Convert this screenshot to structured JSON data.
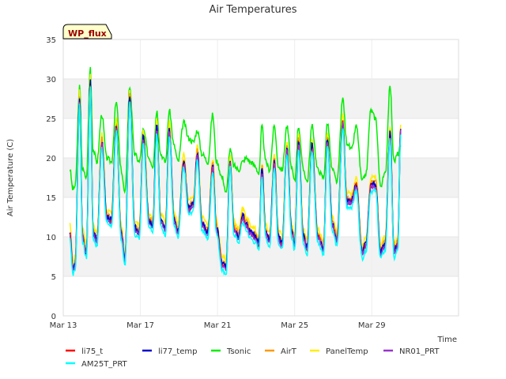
{
  "chart_data": {
    "type": "line",
    "title": "Air Temperatures",
    "xlabel": "Time",
    "ylabel": "Air Temperature (C)",
    "badge": "WP_flux",
    "xlim": [
      0,
      20.5
    ],
    "ylim": [
      0,
      35
    ],
    "x_ticks": [
      {
        "x": 0,
        "label": "Mar 13"
      },
      {
        "x": 4,
        "label": "Mar 17"
      },
      {
        "x": 8,
        "label": "Mar 21"
      },
      {
        "x": 12,
        "label": "Mar 25"
      },
      {
        "x": 16,
        "label": "Mar 29"
      }
    ],
    "y_ticks": [
      0,
      5,
      10,
      15,
      20,
      25,
      30,
      35
    ],
    "shaded_bands": [
      [
        5,
        10
      ],
      [
        15,
        20
      ],
      [
        25,
        30
      ]
    ],
    "grid": true,
    "legend_position": "bottom",
    "base_curve": {
      "x": [
        0.35,
        0.5,
        0.62,
        0.85,
        1.0,
        1.2,
        1.4,
        1.55,
        1.75,
        2.0,
        2.25,
        2.5,
        2.75,
        3.0,
        3.2,
        3.45,
        3.7,
        3.95,
        4.15,
        4.45,
        4.65,
        4.85,
        5.05,
        5.3,
        5.5,
        5.75,
        5.95,
        6.25,
        6.5,
        6.75,
        6.95,
        7.2,
        7.5,
        7.75,
        7.95,
        8.25,
        8.45,
        8.65,
        8.85,
        9.1,
        9.3,
        9.5,
        9.7,
        9.95,
        10.15,
        10.3,
        10.5,
        10.7,
        10.95,
        11.15,
        11.35,
        11.6,
        11.85,
        12.0,
        12.2,
        12.45,
        12.65,
        12.9,
        13.2,
        13.5,
        13.7,
        13.95,
        14.2,
        14.5,
        14.7,
        14.95,
        15.2,
        15.5,
        15.7,
        15.95,
        16.2,
        16.45,
        16.7,
        16.95,
        17.15,
        17.35,
        17.5
      ],
      "y": [
        10.5,
        6.0,
        6.5,
        27.5,
        10.0,
        8.0,
        29.5,
        10.5,
        9.5,
        22.0,
        12.5,
        12.0,
        24.0,
        10.5,
        7.0,
        27.5,
        11.0,
        10.5,
        22.5,
        12.0,
        11.5,
        24.0,
        12.0,
        11.0,
        23.5,
        12.0,
        10.5,
        19.5,
        13.5,
        14.0,
        20.5,
        11.5,
        10.5,
        19.0,
        11.0,
        6.5,
        6.0,
        19.5,
        11.0,
        10.0,
        12.5,
        11.5,
        10.5,
        10.0,
        9.0,
        18.5,
        10.5,
        9.5,
        19.5,
        10.0,
        9.0,
        21.0,
        10.5,
        9.0,
        22.0,
        10.0,
        8.5,
        21.5,
        10.0,
        8.5,
        22.5,
        11.5,
        9.5,
        24.5,
        14.5,
        14.5,
        16.5,
        8.0,
        9.0,
        16.5,
        16.5,
        8.0,
        9.0,
        23.0,
        8.0,
        9.0,
        23.5
      ]
    },
    "series": [
      {
        "name": "li75_t",
        "color": "#ff0000",
        "offset": 0.0,
        "seed": 1,
        "noise": 0.35
      },
      {
        "name": "li77_temp",
        "color": "#0000cc",
        "offset": 0.1,
        "seed": 2,
        "noise": 0.45
      },
      {
        "name": "Tsonic",
        "color": "#00ee00",
        "seed": 3,
        "noise": 0.35,
        "x": [
          0.35,
          0.5,
          0.62,
          0.85,
          1.0,
          1.2,
          1.4,
          1.55,
          1.75,
          2.0,
          2.25,
          2.5,
          2.75,
          3.0,
          3.2,
          3.45,
          3.7,
          3.95,
          4.15,
          4.45,
          4.65,
          4.85,
          5.05,
          5.3,
          5.5,
          5.75,
          5.95,
          6.25,
          6.5,
          6.75,
          6.95,
          7.2,
          7.5,
          7.75,
          7.95,
          8.25,
          8.45,
          8.65,
          8.85,
          9.1,
          9.3,
          9.5,
          9.7,
          9.95,
          10.15,
          10.3,
          10.5,
          10.7,
          10.95,
          11.15,
          11.35,
          11.6,
          11.85,
          12.0,
          12.2,
          12.45,
          12.65,
          12.9,
          13.2,
          13.5,
          13.7,
          13.95,
          14.2,
          14.5,
          14.7,
          14.95,
          15.2,
          15.5,
          15.7,
          15.95,
          16.2,
          16.45,
          16.7,
          16.95,
          17.15,
          17.35,
          17.5
        ],
        "y": [
          18.5,
          16.0,
          16.5,
          29.0,
          18.5,
          17.5,
          31.5,
          21.0,
          19.5,
          25.5,
          20.0,
          19.5,
          27.0,
          18.5,
          15.5,
          29.0,
          20.5,
          19.5,
          23.5,
          20.0,
          19.0,
          26.0,
          20.5,
          19.5,
          26.0,
          21.5,
          19.5,
          24.5,
          22.5,
          22.0,
          23.5,
          20.5,
          19.5,
          25.5,
          19.5,
          17.5,
          15.5,
          21.0,
          19.0,
          18.5,
          19.5,
          20.0,
          19.5,
          19.0,
          18.0,
          24.0,
          19.5,
          18.5,
          24.0,
          19.0,
          18.5,
          24.0,
          18.5,
          17.0,
          24.0,
          18.5,
          17.0,
          24.0,
          18.5,
          17.5,
          24.5,
          18.5,
          17.0,
          27.5,
          22.0,
          21.0,
          24.0,
          17.0,
          18.0,
          26.0,
          25.0,
          16.5,
          18.0,
          29.0,
          19.5,
          20.5,
          21.5
        ]
      },
      {
        "name": "AirT",
        "color": "#ff9900",
        "offset": 0.4,
        "seed": 4,
        "noise": 0.35
      },
      {
        "name": "PanelTemp",
        "color": "#ffee00",
        "offset": 1.0,
        "seed": 5,
        "noise": 0.35
      },
      {
        "name": "NR01_PRT",
        "color": "#9933cc",
        "offset": -0.2,
        "seed": 6,
        "noise": 0.3
      },
      {
        "name": "AM25T_PRT",
        "color": "#00ffff",
        "offset": -0.7,
        "seed": 7,
        "noise": 0.3
      }
    ]
  }
}
